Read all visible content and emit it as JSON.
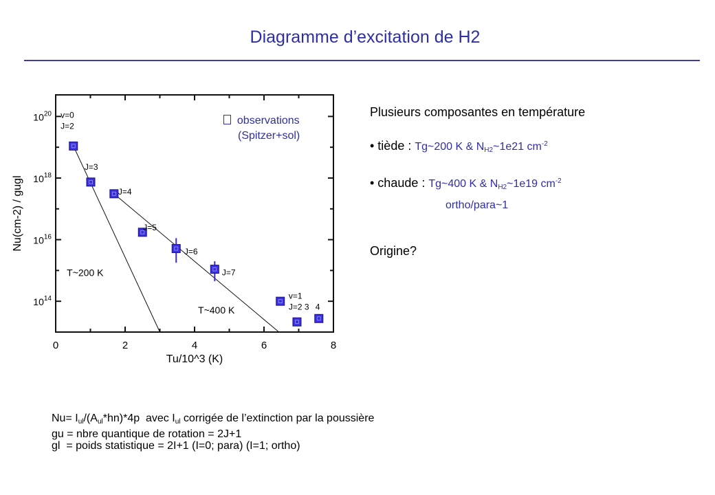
{
  "title": "Diagramme d’excitation de H2",
  "right": {
    "heading": "Plusieurs composantes en température",
    "b1_label": "• tiède : ",
    "b1_a": "Tg~200 K & N",
    "b1_sub": "H2",
    "b1_b": "~1e21 cm",
    "b1_sup": "-2",
    "b2_label": "• chaude : ",
    "b2_a": "Tg~400 K & N",
    "b2_sub": "H2",
    "b2_b": "~1e19 cm",
    "b2_sup": "-2",
    "b2_line2": "ortho/para~1",
    "question": "Origine?"
  },
  "bottom": {
    "l1_a": "Nu= I",
    "l1_sub1": "ul",
    "l1_b": "/(A",
    "l1_sub2": "ul",
    "l1_c": "*hn)*4p  avec I",
    "l1_sub3": "ul",
    "l1_d": " corrigée de l’extinction par la poussière",
    "l2": "gu = nbre quantique de rotation = 2J+1",
    "l3": "gl  = poids statistique = 2I+1 (I=0; para) (I=1; ortho)"
  },
  "legend": {
    "icon": "square-marker",
    "l1": "  observations",
    "l2": "(Spitzer+sol)"
  },
  "colors": {
    "marker": "#3a2ee0",
    "text_blue": "#2e2ea8"
  },
  "chart_data": {
    "type": "scatter",
    "xlabel": "Tu/10^3 (K)",
    "ylabel": "Nu(cm-2) / gugl",
    "xlim": [
      0,
      8
    ],
    "ylim_log10": [
      13.0,
      20.7
    ],
    "yscale": "log",
    "xticks": [
      "0",
      "2",
      "4",
      "6",
      "8"
    ],
    "xtick_values": [
      0,
      2,
      4,
      6,
      8
    ],
    "yticks": [
      "10",
      "10",
      "10",
      "10"
    ],
    "ytick_exps": [
      "20",
      "18",
      "16",
      "14"
    ],
    "ytick_values": [
      20,
      18,
      16,
      14
    ],
    "points": [
      {
        "label": "v=0 J=2",
        "x": 0.51,
        "log10y": 19.04
      },
      {
        "label": "J=3",
        "x": 1.01,
        "log10y": 17.87
      },
      {
        "label": "J=4",
        "x": 1.68,
        "log10y": 17.49
      },
      {
        "label": "J=5",
        "x": 2.5,
        "log10y": 16.24
      },
      {
        "label": "J=6",
        "x": 3.47,
        "log10y": 15.71,
        "err": [
          15.25,
          16.05
        ]
      },
      {
        "label": "J=7",
        "x": 4.58,
        "log10y": 15.04,
        "err": [
          14.65,
          15.3
        ]
      },
      {
        "label": "v=1 J=2",
        "x": 6.47,
        "log10y": 14.0
      },
      {
        "label": "v=1 J=3",
        "x": 6.95,
        "log10y": 13.33
      },
      {
        "label": "v=1 J=4",
        "x": 7.58,
        "log10y": 13.44
      }
    ],
    "fits": [
      {
        "name": "T~200 K",
        "from": [
          0.51,
          19.04
        ],
        "to": [
          3.0,
          13.0
        ]
      },
      {
        "name": "T~400 K",
        "from": [
          1.68,
          17.49
        ],
        "to": [
          6.45,
          12.98
        ]
      }
    ],
    "annotations": [
      {
        "text": "v=0",
        "x": 0.14,
        "y": 19.95
      },
      {
        "text": "J=2",
        "x": 0.14,
        "y": 19.6
      },
      {
        "text": "J=3",
        "x": 0.83,
        "y": 18.27
      },
      {
        "text": "J=4",
        "x": 1.8,
        "y": 17.46
      },
      {
        "text": "J=5",
        "x": 2.52,
        "y": 16.3
      },
      {
        "text": "J=6",
        "x": 3.7,
        "y": 15.52
      },
      {
        "text": "J=7",
        "x": 4.79,
        "y": 14.84
      },
      {
        "text": "v=1",
        "x": 6.71,
        "y": 14.08
      },
      {
        "text": "J=2 3",
        "x": 6.71,
        "y": 13.72
      },
      {
        "text": "4",
        "x": 7.48,
        "y": 13.72
      },
      {
        "text": "T~200 K",
        "x": 0.32,
        "y": 14.82
      },
      {
        "text": "T~400 K",
        "x": 4.1,
        "y": 13.6
      }
    ]
  }
}
